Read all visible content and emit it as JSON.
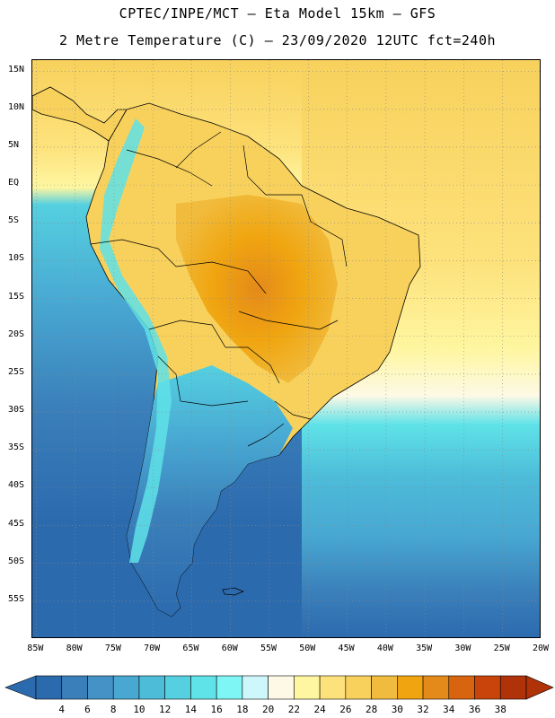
{
  "header": {
    "line1": "CPTEC/INPE/MCT –  Eta Model 15km – GFS",
    "line2": "2 Metre Temperature (C) – 23/09/2020 12UTC fct=240h"
  },
  "axes": {
    "lat_labels": [
      "15N",
      "10N",
      "5N",
      "EQ",
      "5S",
      "10S",
      "15S",
      "20S",
      "25S",
      "30S",
      "35S",
      "40S",
      "45S",
      "50S",
      "55S"
    ],
    "lat_values": [
      15,
      10,
      5,
      0,
      -5,
      -10,
      -15,
      -20,
      -25,
      -30,
      -35,
      -40,
      -45,
      -50,
      -55
    ],
    "lon_labels": [
      "85W",
      "80W",
      "75W",
      "70W",
      "65W",
      "60W",
      "55W",
      "50W",
      "45W",
      "40W",
      "35W",
      "30W",
      "25W",
      "20W"
    ],
    "lon_values": [
      -85,
      -80,
      -75,
      -70,
      -65,
      -60,
      -55,
      -50,
      -45,
      -40,
      -35,
      -30,
      -25,
      -20
    ],
    "lat_range": [
      -60,
      16.5
    ],
    "lon_range": [
      -85.5,
      -20
    ]
  },
  "colorbar": {
    "labels": [
      "4",
      "6",
      "8",
      "10",
      "12",
      "14",
      "16",
      "18",
      "20",
      "22",
      "24",
      "26",
      "28",
      "30",
      "32",
      "34",
      "36",
      "38"
    ],
    "colors": [
      "#2c6aae",
      "#3a7fba",
      "#4593c6",
      "#48a8d2",
      "#4dbcd9",
      "#55d0e0",
      "#5fe2e8",
      "#7ff6f6",
      "#cdf7fb",
      "#fdf9e6",
      "#fef6a0",
      "#fde27c",
      "#f8d15c",
      "#f1bc3e",
      "#f0a510",
      "#e48a1a",
      "#d86410",
      "#c8440a",
      "#b03208"
    ],
    "under_color": "#2c6aae",
    "over_color": "#b03208"
  },
  "colors": {
    "ocean_south": "#2c6aae",
    "ocean_mid": "#4dbcd9",
    "ocean_north": "#fde27c",
    "land_hot": "#f0a510",
    "andes": "#7ff6f6",
    "patagonia": "#3a7fba",
    "border": "#000000",
    "grid": "#999999"
  }
}
